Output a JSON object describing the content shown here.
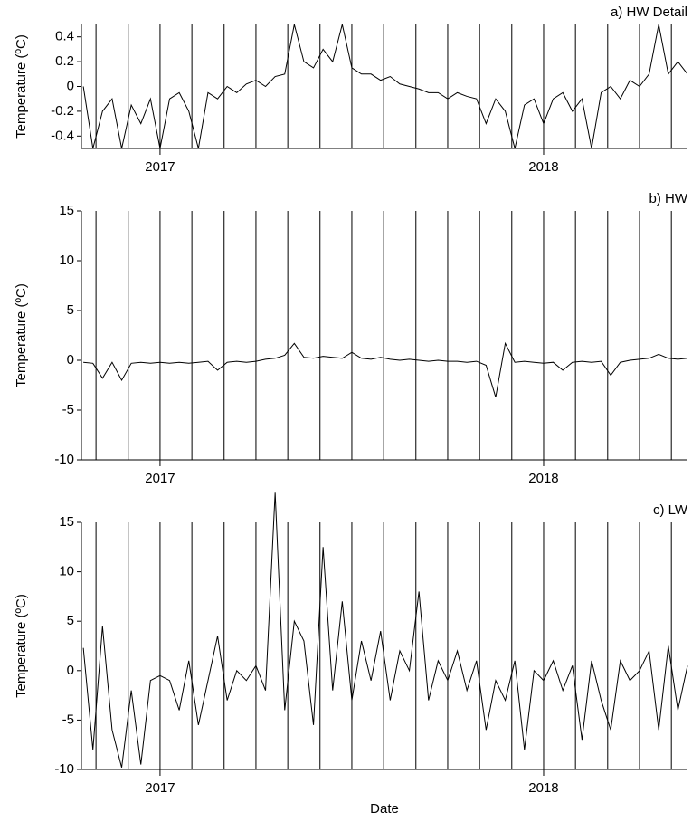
{
  "chart_data": [
    {
      "type": "line",
      "title": "a) HW Detail",
      "ylabel": "Temperature (ºC)",
      "color": "#000000",
      "xlim": [
        2016.795,
        2018.375
      ],
      "xticks": [
        {
          "value": 2017,
          "label": "2017"
        },
        {
          "value": 2018,
          "label": "2018"
        }
      ],
      "xgrid": [
        2016.833,
        2016.917,
        2017,
        2017.083,
        2017.167,
        2017.25,
        2017.333,
        2017.417,
        2017.5,
        2017.583,
        2017.667,
        2017.75,
        2017.833,
        2017.917,
        2018,
        2018.083,
        2018.167,
        2018.25,
        2018.333
      ],
      "ylim": [
        -0.5,
        0.5
      ],
      "yticks": [
        -0.4,
        -0.2,
        0,
        0.2,
        0.4
      ],
      "x": [
        2016.8,
        2016.825,
        2016.85,
        2016.875,
        2016.9,
        2016.925,
        2016.95,
        2016.975,
        2017,
        2017.025,
        2017.05,
        2017.075,
        2017.1,
        2017.125,
        2017.15,
        2017.175,
        2017.2,
        2017.225,
        2017.25,
        2017.275,
        2017.3,
        2017.325,
        2017.35,
        2017.375,
        2017.4,
        2017.425,
        2017.45,
        2017.475,
        2017.5,
        2017.525,
        2017.55,
        2017.575,
        2017.6,
        2017.625,
        2017.65,
        2017.675,
        2017.7,
        2017.725,
        2017.75,
        2017.775,
        2017.8,
        2017.825,
        2017.85,
        2017.875,
        2017.9,
        2017.925,
        2017.95,
        2017.975,
        2018,
        2018.025,
        2018.05,
        2018.075,
        2018.1,
        2018.125,
        2018.15,
        2018.175,
        2018.2,
        2018.225,
        2018.25,
        2018.275,
        2018.3,
        2018.325,
        2018.35,
        2018.375
      ],
      "values": [
        0,
        -0.5,
        -0.2,
        -0.1,
        -0.5,
        -0.15,
        -0.3,
        -0.1,
        -0.5,
        -0.1,
        -0.05,
        -0.2,
        -0.5,
        -0.05,
        -0.1,
        0,
        -0.05,
        0.02,
        0.05,
        0,
        0.08,
        0.1,
        0.5,
        0.2,
        0.15,
        0.3,
        0.2,
        0.5,
        0.15,
        0.1,
        0.1,
        0.05,
        0.08,
        0.02,
        0,
        -0.02,
        -0.05,
        -0.05,
        -0.1,
        -0.05,
        -0.08,
        -0.1,
        -0.3,
        -0.1,
        -0.2,
        -0.5,
        -0.15,
        -0.1,
        -0.3,
        -0.1,
        -0.05,
        -0.2,
        -0.1,
        -0.5,
        -0.05,
        0,
        -0.1,
        0.05,
        0,
        0.1,
        0.5,
        0.1,
        0.2,
        0.1
      ]
    },
    {
      "type": "line",
      "title": "b) HW",
      "ylabel": "Temperature (ºC)",
      "color": "#000000",
      "xlim": [
        2016.795,
        2018.375
      ],
      "xticks": [
        {
          "value": 2017,
          "label": "2017"
        },
        {
          "value": 2018,
          "label": "2018"
        }
      ],
      "xgrid": [
        2016.833,
        2016.917,
        2017,
        2017.083,
        2017.167,
        2017.25,
        2017.333,
        2017.417,
        2017.5,
        2017.583,
        2017.667,
        2017.75,
        2017.833,
        2017.917,
        2018,
        2018.083,
        2018.167,
        2018.25,
        2018.333
      ],
      "ylim": [
        -10,
        15
      ],
      "yticks": [
        -10,
        -5,
        0,
        5,
        10,
        15
      ],
      "x": [
        2016.8,
        2016.825,
        2016.85,
        2016.875,
        2016.9,
        2016.925,
        2016.95,
        2016.975,
        2017,
        2017.025,
        2017.05,
        2017.075,
        2017.1,
        2017.125,
        2017.15,
        2017.175,
        2017.2,
        2017.225,
        2017.25,
        2017.275,
        2017.3,
        2017.325,
        2017.35,
        2017.375,
        2017.4,
        2017.425,
        2017.45,
        2017.475,
        2017.5,
        2017.525,
        2017.55,
        2017.575,
        2017.6,
        2017.625,
        2017.65,
        2017.675,
        2017.7,
        2017.725,
        2017.75,
        2017.775,
        2017.8,
        2017.825,
        2017.85,
        2017.875,
        2017.9,
        2017.925,
        2017.95,
        2017.975,
        2018,
        2018.025,
        2018.05,
        2018.075,
        2018.1,
        2018.125,
        2018.15,
        2018.175,
        2018.2,
        2018.225,
        2018.25,
        2018.275,
        2018.3,
        2018.325,
        2018.35,
        2018.375
      ],
      "values": [
        -0.2,
        -0.3,
        -1.8,
        -0.2,
        -2,
        -0.3,
        -0.2,
        -0.3,
        -0.2,
        -0.3,
        -0.2,
        -0.3,
        -0.2,
        -0.1,
        -1,
        -0.2,
        -0.1,
        -0.2,
        -0.1,
        0.1,
        0.2,
        0.5,
        1.7,
        0.3,
        0.2,
        0.4,
        0.3,
        0.2,
        0.8,
        0.2,
        0.1,
        0.3,
        0.1,
        0,
        0.1,
        0,
        -0.1,
        0,
        -0.1,
        -0.1,
        -0.2,
        -0.1,
        -0.5,
        -3.7,
        1.7,
        -0.2,
        -0.1,
        -0.2,
        -0.3,
        -0.2,
        -1,
        -0.2,
        -0.1,
        -0.2,
        -0.1,
        -1.5,
        -0.2,
        0,
        0.1,
        0.2,
        0.6,
        0.2,
        0.1,
        0.2
      ]
    },
    {
      "type": "line",
      "title": "c) LW",
      "ylabel": "Temperature (ºC)",
      "xlabel": "Date",
      "color": "#000000",
      "xlim": [
        2016.795,
        2018.375
      ],
      "xticks": [
        {
          "value": 2017,
          "label": "2017"
        },
        {
          "value": 2018,
          "label": "2018"
        }
      ],
      "xgrid": [
        2016.833,
        2016.917,
        2017,
        2017.083,
        2017.167,
        2017.25,
        2017.333,
        2017.417,
        2017.5,
        2017.583,
        2017.667,
        2017.75,
        2017.833,
        2017.917,
        2018,
        2018.083,
        2018.167,
        2018.25,
        2018.333
      ],
      "ylim": [
        -10,
        15
      ],
      "yticks": [
        -10,
        -5,
        0,
        5,
        10,
        15
      ],
      "x": [
        2016.8,
        2016.825,
        2016.85,
        2016.875,
        2016.9,
        2016.925,
        2016.95,
        2016.975,
        2017,
        2017.025,
        2017.05,
        2017.075,
        2017.1,
        2017.125,
        2017.15,
        2017.175,
        2017.2,
        2017.225,
        2017.25,
        2017.275,
        2017.3,
        2017.325,
        2017.35,
        2017.375,
        2017.4,
        2017.425,
        2017.45,
        2017.475,
        2017.5,
        2017.525,
        2017.55,
        2017.575,
        2017.6,
        2017.625,
        2017.65,
        2017.675,
        2017.7,
        2017.725,
        2017.75,
        2017.775,
        2017.8,
        2017.825,
        2017.85,
        2017.875,
        2017.9,
        2017.925,
        2017.95,
        2017.975,
        2018,
        2018.025,
        2018.05,
        2018.075,
        2018.1,
        2018.125,
        2018.15,
        2018.175,
        2018.2,
        2018.225,
        2018.25,
        2018.275,
        2018.3,
        2018.325,
        2018.35,
        2018.375
      ],
      "values": [
        2.3,
        -8,
        4.5,
        -6,
        -9.8,
        -2,
        -9.5,
        -1,
        -0.5,
        -1,
        -4,
        1,
        -5.5,
        -1,
        3.5,
        -3,
        0,
        -1,
        0.5,
        -2,
        18,
        -4,
        5,
        3,
        -5.5,
        12.5,
        -2,
        7,
        -3,
        3,
        -1,
        4,
        -3,
        2,
        0,
        8,
        -3,
        1,
        -1,
        2,
        -2,
        1,
        -6,
        -1,
        -3,
        1,
        -8,
        0,
        -1,
        1,
        -2,
        0.5,
        -7,
        1,
        -3,
        -6,
        1,
        -1,
        0,
        2,
        -6,
        2.5,
        -4,
        0.5
      ]
    }
  ]
}
